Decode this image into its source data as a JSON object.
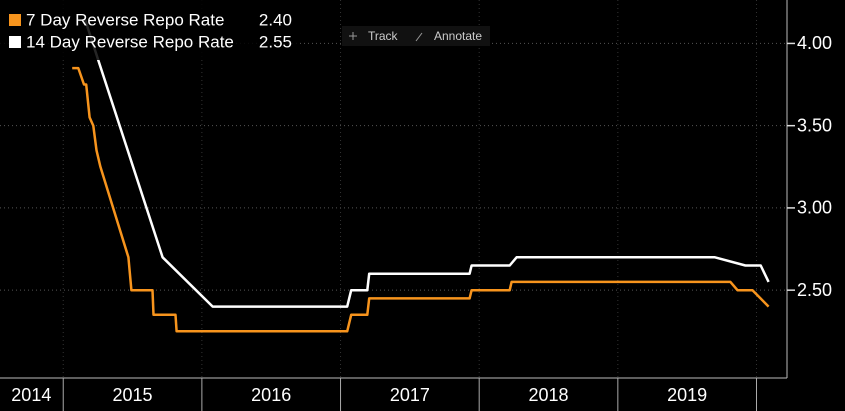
{
  "chart_data": {
    "type": "line",
    "toolbar": [
      "Track",
      "Annotate"
    ],
    "xlim": [
      2014.544,
      2020.22
    ],
    "ylim": [
      1.966,
      4.264
    ],
    "yticks": [
      {
        "value": 2.5,
        "label": "2.50"
      },
      {
        "value": 3,
        "label": "3.00"
      },
      {
        "value": 3.5,
        "label": "3.50"
      },
      {
        "value": 4,
        "label": "4.00"
      }
    ],
    "xticks": [
      {
        "value": 2014.77,
        "label": "2014"
      },
      {
        "value": 2015.5,
        "label": "2015"
      },
      {
        "value": 2016.5,
        "label": "2016"
      },
      {
        "value": 2017.5,
        "label": "2017"
      },
      {
        "value": 2018.5,
        "label": "2018"
      },
      {
        "value": 2019.5,
        "label": "2019"
      }
    ],
    "grid": true,
    "series": [
      {
        "name": "7 Day Reverse Repo Rate",
        "legend_value": "2.40",
        "color": "#f7941d",
        "x": [
          2015.065,
          2015.109,
          2015.15,
          2015.166,
          2015.19,
          2015.217,
          2015.24,
          2015.268,
          2015.47,
          2015.492,
          2015.644,
          2015.651,
          2015.81,
          2015.818,
          2017.048,
          2017.077,
          2017.193,
          2017.207,
          2017.931,
          2017.945,
          2018.22,
          2018.234,
          2019.812,
          2019.863,
          2019.971,
          2020.087
        ],
        "values": [
          3.85,
          3.85,
          3.75,
          3.75,
          3.55,
          3.5,
          3.35,
          3.25,
          2.7,
          2.5,
          2.5,
          2.35,
          2.35,
          2.25,
          2.25,
          2.35,
          2.35,
          2.45,
          2.45,
          2.5,
          2.5,
          2.55,
          2.55,
          2.5,
          2.5,
          2.4
        ]
      },
      {
        "name": "14 Day Reverse Repo Rate",
        "legend_value": "2.55",
        "color": "#ffffff",
        "x": [
          2015.159,
          2015.717,
          2016.078,
          2017.048,
          2017.077,
          2017.193,
          2017.207,
          2017.931,
          2017.945,
          2018.22,
          2018.27,
          2019.7,
          2019.92,
          2020.03,
          2020.087
        ],
        "values": [
          4.14,
          2.7,
          2.4,
          2.4,
          2.5,
          2.5,
          2.6,
          2.6,
          2.65,
          2.65,
          2.7,
          2.7,
          2.65,
          2.65,
          2.55
        ]
      }
    ]
  }
}
